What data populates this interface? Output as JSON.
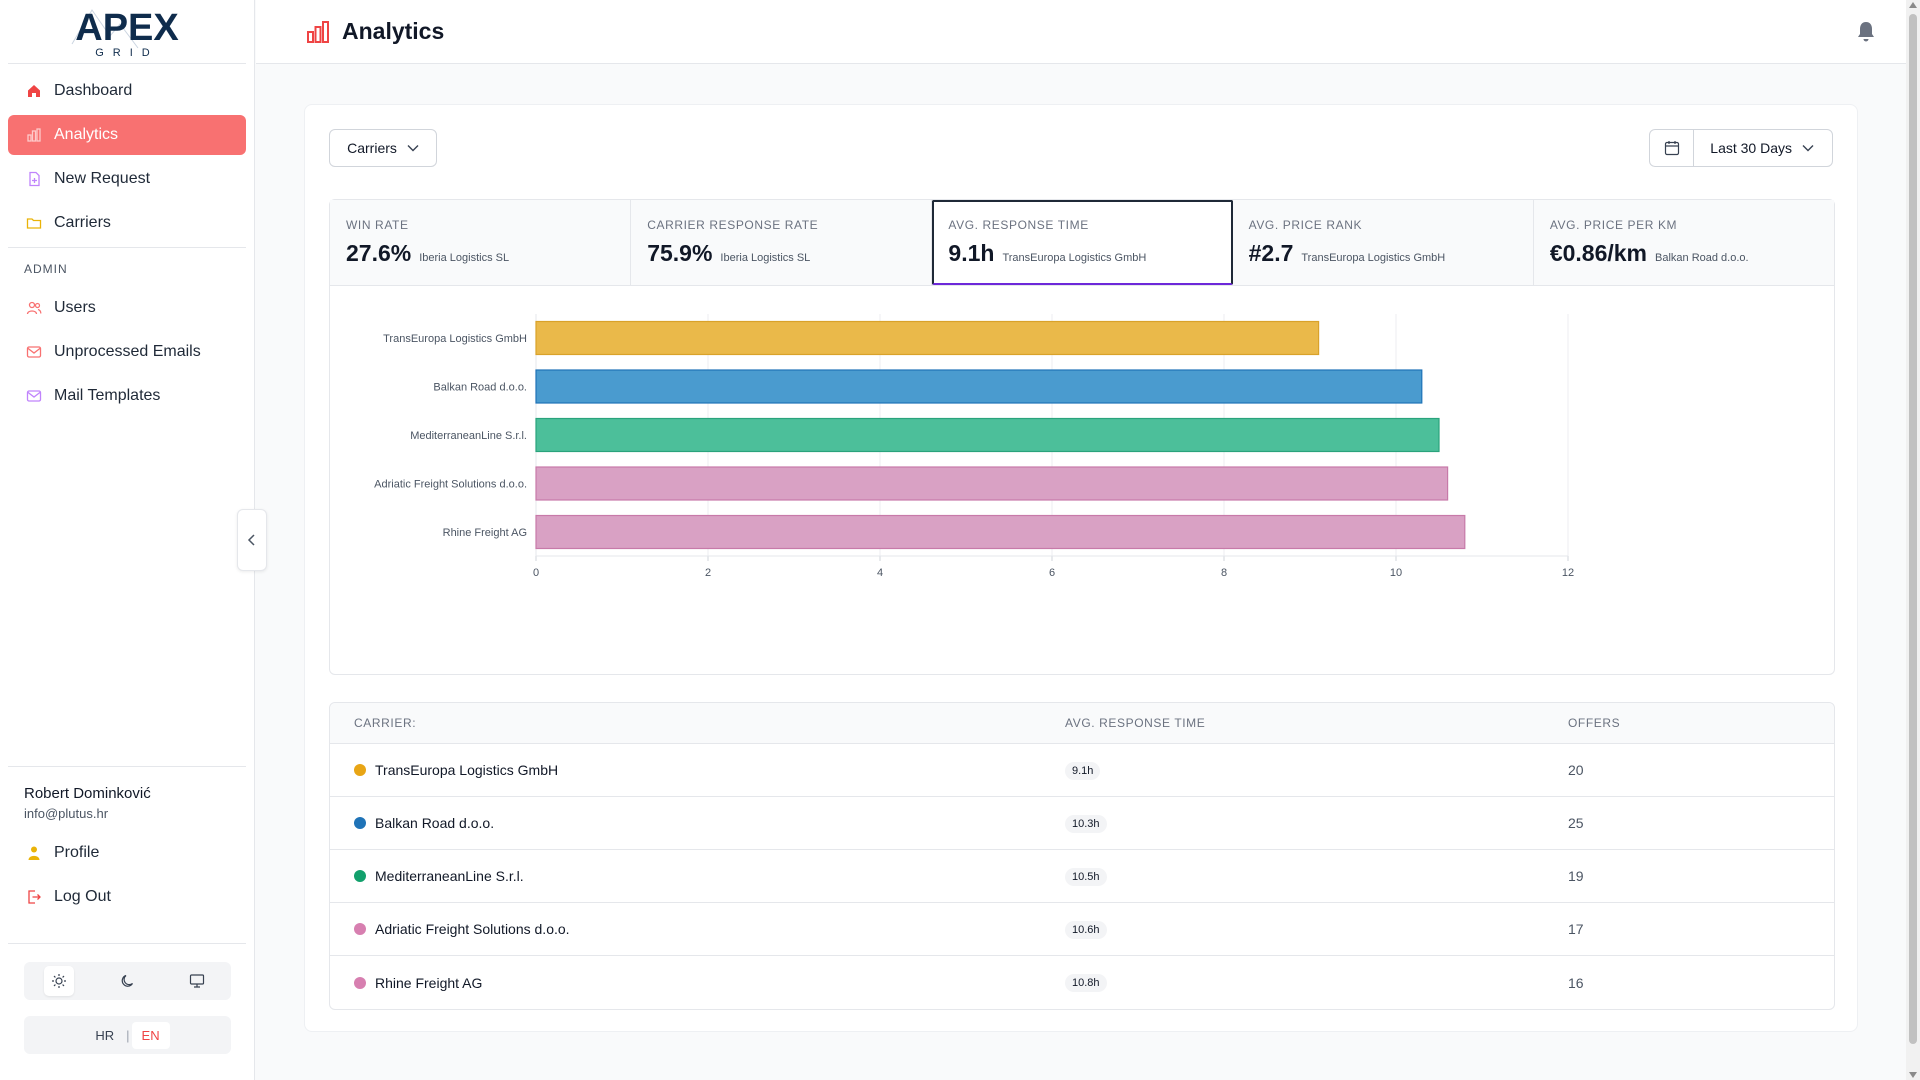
{
  "brand": {
    "logo_main": "APEX",
    "logo_sub": "GRID"
  },
  "sidebar": {
    "nav": [
      {
        "label": "Dashboard",
        "icon": "home-icon"
      },
      {
        "label": "Analytics",
        "icon": "bar-chart-icon",
        "active": true
      },
      {
        "label": "New Request",
        "icon": "file-plus-icon"
      },
      {
        "label": "Carriers",
        "icon": "truck-icon"
      }
    ],
    "admin_label": "ADMIN",
    "admin_nav": [
      {
        "label": "Users",
        "icon": "users-icon"
      },
      {
        "label": "Unprocessed Emails",
        "icon": "mail-icon"
      },
      {
        "label": "Mail Templates",
        "icon": "mail-icon"
      }
    ],
    "user": {
      "name": "Robert Dominković",
      "email": "info@plutus.hr"
    },
    "bottom_nav": [
      {
        "label": "Profile",
        "icon": "user-icon"
      },
      {
        "label": "Log Out",
        "icon": "logout-icon"
      }
    ],
    "themes": [
      "sun-icon",
      "moon-icon",
      "monitor-icon"
    ],
    "languages": {
      "hr": "HR",
      "en": "EN",
      "selected": "EN"
    }
  },
  "header": {
    "title": "Analytics",
    "accent": "#ef4444"
  },
  "filters": {
    "carriers_label": "Carriers",
    "date_range_label": "Last 30 Days"
  },
  "stats": [
    {
      "label": "WIN RATE",
      "value": "27.6%",
      "sub": "Iberia Logistics SL"
    },
    {
      "label": "CARRIER RESPONSE RATE",
      "value": "75.9%",
      "sub": "Iberia Logistics SL"
    },
    {
      "label": "AVG. RESPONSE TIME",
      "value": "9.1h",
      "sub": "TransEuropa Logistics GmbH",
      "selected": true
    },
    {
      "label": "AVG. PRICE RANK",
      "value": "#2.7",
      "sub": "TransEuropa Logistics GmbH"
    },
    {
      "label": "AVG. PRICE PER KM",
      "value": "€0.86/km",
      "sub": "Balkan Road d.o.o."
    }
  ],
  "chart_data": {
    "type": "bar",
    "orientation": "horizontal",
    "categories": [
      "TransEuropa Logistics GmbH",
      "Balkan Road d.o.o.",
      "MediterraneanLine S.r.l.",
      "Adriatic Freight Solutions d.o.o.",
      "Rhine Freight AG"
    ],
    "values": [
      9.1,
      10.3,
      10.5,
      10.6,
      10.8
    ],
    "colors": [
      "#eab94a",
      "#4a9bcf",
      "#4cbf9a",
      "#d9a1c4",
      "#d9a1c4"
    ],
    "border_colors": [
      "#d9a22a",
      "#1f73b7",
      "#2aa37c",
      "#c77aa9",
      "#c77aa9"
    ],
    "xlim": [
      0,
      12
    ],
    "xticks": [
      0,
      2,
      4,
      6,
      8,
      10,
      12
    ],
    "grid": true
  },
  "table": {
    "headers": [
      "CARRIER:",
      "AVG. RESPONSE TIME",
      "OFFERS"
    ],
    "rows": [
      {
        "carrier": "TransEuropa Logistics GmbH",
        "time": "9.1h",
        "offers": "20",
        "color": "#e8a515"
      },
      {
        "carrier": "Balkan Road d.o.o.",
        "time": "10.3h",
        "offers": "25",
        "color": "#1f73b7"
      },
      {
        "carrier": "MediterraneanLine S.r.l.",
        "time": "10.5h",
        "offers": "19",
        "color": "#12a06c"
      },
      {
        "carrier": "Adriatic Freight Solutions d.o.o.",
        "time": "10.6h",
        "offers": "17",
        "color": "#d77fb0"
      },
      {
        "carrier": "Rhine Freight AG",
        "time": "10.8h",
        "offers": "16",
        "color": "#d77fb0"
      }
    ]
  }
}
